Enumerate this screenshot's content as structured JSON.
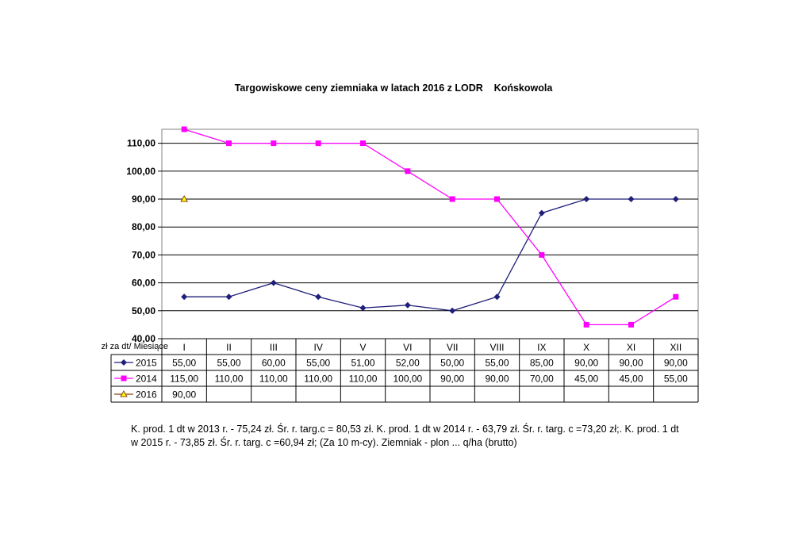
{
  "chart_data": {
    "type": "line",
    "title": "Targowiskowe ceny ziemniaka w latach 2016 z LODR    Końskowola",
    "ylabel": "zł za dt/ Miesiące",
    "categories": [
      "I",
      "II",
      "III",
      "IV",
      "V",
      "VI",
      "VII",
      "VIII",
      "IX",
      "X",
      "XI",
      "XII"
    ],
    "ylim": [
      40,
      115
    ],
    "yticks": [
      "40,00",
      "50,00",
      "60,00",
      "70,00",
      "80,00",
      "90,00",
      "100,00",
      "110,00"
    ],
    "grid": true,
    "legend": "table-below",
    "series": [
      {
        "name": "2015",
        "color": "#1f1f7a",
        "marker": "diamond",
        "values": [
          55,
          55,
          60,
          55,
          51,
          52,
          50,
          55,
          85,
          90,
          90,
          90
        ],
        "labels": [
          "55,00",
          "55,00",
          "60,00",
          "55,00",
          "51,00",
          "52,00",
          "50,00",
          "55,00",
          "85,00",
          "90,00",
          "90,00",
          "90,00"
        ]
      },
      {
        "name": "2014",
        "color": "#ff00ff",
        "marker": "square",
        "values": [
          115,
          110,
          110,
          110,
          110,
          100,
          90,
          90,
          70,
          45,
          45,
          55
        ],
        "labels": [
          "115,00",
          "110,00",
          "110,00",
          "110,00",
          "110,00",
          "100,00",
          "90,00",
          "90,00",
          "70,00",
          "45,00",
          "45,00",
          "55,00"
        ]
      },
      {
        "name": "2016",
        "color": "#8b4513",
        "marker": "triangle",
        "marker_fill": "#ffff00",
        "values": [
          90,
          null,
          null,
          null,
          null,
          null,
          null,
          null,
          null,
          null,
          null,
          null
        ],
        "labels": [
          "90,00",
          "",
          "",
          "",
          "",
          "",
          "",
          "",
          "",
          "",
          "",
          ""
        ]
      }
    ]
  },
  "note": "K. prod. 1 dt  w  2013 r. - 75,24 zł. Śr. r. targ.c = 80,53 zł. K. prod. 1 dt  w  2014 r. - 63,79 zł. Śr. r. targ. c =73,20 zł;. K. prod. 1 dt  w  2015 r. - 73,85 zł. Śr. r. targ. c =60,94 zł; (Za 10 m-cy).  Ziemniak - plon ... q/ha (brutto)"
}
